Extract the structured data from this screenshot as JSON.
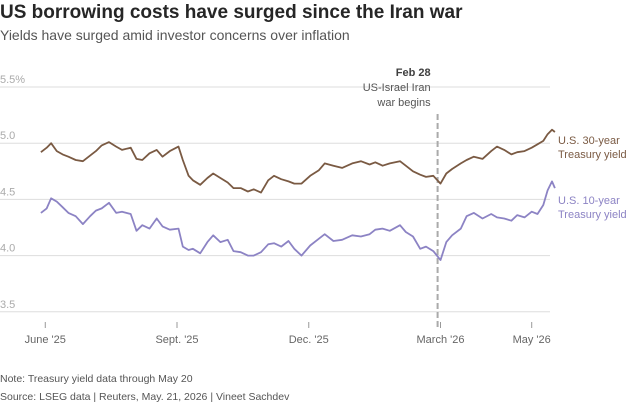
{
  "header": {
    "title": "US borrowing costs have surged since the Iran war",
    "subtitle": "Yields have surged amid investor concerns over inflation"
  },
  "footer": {
    "note": "Note: Treasury yield data through May 20",
    "source": "Source: LSEG data | Reuters, May. 21, 2026 | Vineet Sachdev"
  },
  "colors": {
    "thirty_year": "#7a5a43",
    "ten_year": "#8c83c4",
    "grid": "#dddddd",
    "event_line": "#aaaaaa"
  },
  "chart_data": {
    "type": "line",
    "title": "",
    "xlabel": "",
    "ylabel": "",
    "ylim": [
      3.4,
      5.5
    ],
    "yticks": [
      {
        "value": 5.5,
        "label": "5.5%"
      },
      {
        "value": 5.0,
        "label": "5.0"
      },
      {
        "value": 4.5,
        "label": "4.5"
      },
      {
        "value": 4.0,
        "label": "4.0"
      },
      {
        "value": 3.5,
        "label": "3.5"
      }
    ],
    "xlim": [
      "2025-05-19",
      "2026-05-27"
    ],
    "xticks": [
      {
        "date": "2025-06-02",
        "label": "June '25"
      },
      {
        "date": "2025-09-01",
        "label": "Sept. '25"
      },
      {
        "date": "2025-12-01",
        "label": "Dec. '25"
      },
      {
        "date": "2026-03-02",
        "label": "March '26"
      },
      {
        "date": "2026-05-04",
        "label": "May '26"
      }
    ],
    "grid": true,
    "annotation": {
      "date": "2026-02-28",
      "date_label": "Feb 28",
      "line1": "US-Israel Iran",
      "line2": "war begins"
    },
    "series": [
      {
        "name": "U.S. 30-year Treasury yield",
        "label_line1": "U.S. 30-year",
        "label_line2": "Treasury yield",
        "points": [
          [
            "2025-05-30",
            4.92
          ],
          [
            "2025-06-03",
            4.96
          ],
          [
            "2025-06-06",
            5.0
          ],
          [
            "2025-06-10",
            4.93
          ],
          [
            "2025-06-14",
            4.9
          ],
          [
            "2025-06-18",
            4.88
          ],
          [
            "2025-06-23",
            4.85
          ],
          [
            "2025-06-28",
            4.84
          ],
          [
            "2025-07-03",
            4.89
          ],
          [
            "2025-07-07",
            4.93
          ],
          [
            "2025-07-11",
            4.98
          ],
          [
            "2025-07-16",
            5.01
          ],
          [
            "2025-07-21",
            4.97
          ],
          [
            "2025-07-25",
            4.94
          ],
          [
            "2025-07-31",
            4.96
          ],
          [
            "2025-08-04",
            4.86
          ],
          [
            "2025-08-08",
            4.85
          ],
          [
            "2025-08-13",
            4.91
          ],
          [
            "2025-08-18",
            4.94
          ],
          [
            "2025-08-22",
            4.88
          ],
          [
            "2025-08-27",
            4.93
          ],
          [
            "2025-09-02",
            4.97
          ],
          [
            "2025-09-05",
            4.85
          ],
          [
            "2025-09-09",
            4.71
          ],
          [
            "2025-09-12",
            4.67
          ],
          [
            "2025-09-17",
            4.63
          ],
          [
            "2025-09-22",
            4.69
          ],
          [
            "2025-09-26",
            4.73
          ],
          [
            "2025-10-01",
            4.69
          ],
          [
            "2025-10-06",
            4.65
          ],
          [
            "2025-10-10",
            4.6
          ],
          [
            "2025-10-15",
            4.6
          ],
          [
            "2025-10-20",
            4.57
          ],
          [
            "2025-10-24",
            4.59
          ],
          [
            "2025-10-29",
            4.56
          ],
          [
            "2025-11-03",
            4.67
          ],
          [
            "2025-11-07",
            4.71
          ],
          [
            "2025-11-12",
            4.68
          ],
          [
            "2025-11-17",
            4.66
          ],
          [
            "2025-11-21",
            4.64
          ],
          [
            "2025-11-26",
            4.64
          ],
          [
            "2025-12-02",
            4.71
          ],
          [
            "2025-12-08",
            4.76
          ],
          [
            "2025-12-12",
            4.82
          ],
          [
            "2025-12-18",
            4.8
          ],
          [
            "2025-12-24",
            4.78
          ],
          [
            "2025-12-31",
            4.82
          ],
          [
            "2026-01-06",
            4.84
          ],
          [
            "2026-01-12",
            4.81
          ],
          [
            "2026-01-16",
            4.83
          ],
          [
            "2026-01-21",
            4.8
          ],
          [
            "2026-01-26",
            4.82
          ],
          [
            "2026-02-02",
            4.84
          ],
          [
            "2026-02-06",
            4.8
          ],
          [
            "2026-02-11",
            4.75
          ],
          [
            "2026-02-16",
            4.72
          ],
          [
            "2026-02-20",
            4.7
          ],
          [
            "2026-02-25",
            4.71
          ],
          [
            "2026-03-02",
            4.64
          ],
          [
            "2026-03-06",
            4.73
          ],
          [
            "2026-03-10",
            4.77
          ],
          [
            "2026-03-16",
            4.82
          ],
          [
            "2026-03-20",
            4.85
          ],
          [
            "2026-03-25",
            4.88
          ],
          [
            "2026-03-31",
            4.86
          ],
          [
            "2026-04-06",
            4.93
          ],
          [
            "2026-04-10",
            4.97
          ],
          [
            "2026-04-15",
            4.94
          ],
          [
            "2026-04-20",
            4.9
          ],
          [
            "2026-04-24",
            4.92
          ],
          [
            "2026-04-29",
            4.93
          ],
          [
            "2026-05-04",
            4.96
          ],
          [
            "2026-05-08",
            4.99
          ],
          [
            "2026-05-12",
            5.02
          ],
          [
            "2026-05-15",
            5.08
          ],
          [
            "2026-05-18",
            5.12
          ],
          [
            "2026-05-20",
            5.1
          ]
        ]
      },
      {
        "name": "U.S. 10-year Treasury yield",
        "label_line1": "U.S. 10-year",
        "label_line2": "Treasury yield",
        "points": [
          [
            "2025-05-30",
            4.38
          ],
          [
            "2025-06-03",
            4.42
          ],
          [
            "2025-06-06",
            4.51
          ],
          [
            "2025-06-10",
            4.48
          ],
          [
            "2025-06-14",
            4.43
          ],
          [
            "2025-06-18",
            4.38
          ],
          [
            "2025-06-23",
            4.35
          ],
          [
            "2025-06-28",
            4.28
          ],
          [
            "2025-07-03",
            4.35
          ],
          [
            "2025-07-07",
            4.4
          ],
          [
            "2025-07-11",
            4.42
          ],
          [
            "2025-07-16",
            4.47
          ],
          [
            "2025-07-21",
            4.38
          ],
          [
            "2025-07-25",
            4.39
          ],
          [
            "2025-07-31",
            4.37
          ],
          [
            "2025-08-04",
            4.22
          ],
          [
            "2025-08-08",
            4.27
          ],
          [
            "2025-08-13",
            4.24
          ],
          [
            "2025-08-18",
            4.33
          ],
          [
            "2025-08-22",
            4.26
          ],
          [
            "2025-08-27",
            4.23
          ],
          [
            "2025-09-02",
            4.24
          ],
          [
            "2025-09-05",
            4.08
          ],
          [
            "2025-09-09",
            4.05
          ],
          [
            "2025-09-12",
            4.06
          ],
          [
            "2025-09-17",
            4.02
          ],
          [
            "2025-09-22",
            4.12
          ],
          [
            "2025-09-26",
            4.18
          ],
          [
            "2025-10-01",
            4.12
          ],
          [
            "2025-10-06",
            4.14
          ],
          [
            "2025-10-10",
            4.04
          ],
          [
            "2025-10-15",
            4.03
          ],
          [
            "2025-10-20",
            4.0
          ],
          [
            "2025-10-24",
            4.0
          ],
          [
            "2025-10-29",
            4.03
          ],
          [
            "2025-11-03",
            4.1
          ],
          [
            "2025-11-07",
            4.11
          ],
          [
            "2025-11-12",
            4.08
          ],
          [
            "2025-11-17",
            4.13
          ],
          [
            "2025-11-21",
            4.06
          ],
          [
            "2025-11-26",
            4.0
          ],
          [
            "2025-12-02",
            4.09
          ],
          [
            "2025-12-08",
            4.15
          ],
          [
            "2025-12-12",
            4.19
          ],
          [
            "2025-12-18",
            4.13
          ],
          [
            "2025-12-24",
            4.14
          ],
          [
            "2025-12-31",
            4.18
          ],
          [
            "2026-01-06",
            4.17
          ],
          [
            "2026-01-12",
            4.19
          ],
          [
            "2026-01-16",
            4.23
          ],
          [
            "2026-01-21",
            4.24
          ],
          [
            "2026-01-26",
            4.22
          ],
          [
            "2026-02-02",
            4.27
          ],
          [
            "2026-02-06",
            4.21
          ],
          [
            "2026-02-11",
            4.17
          ],
          [
            "2026-02-16",
            4.06
          ],
          [
            "2026-02-20",
            4.08
          ],
          [
            "2026-02-25",
            4.04
          ],
          [
            "2026-03-02",
            3.96
          ],
          [
            "2026-03-06",
            4.12
          ],
          [
            "2026-03-10",
            4.18
          ],
          [
            "2026-03-16",
            4.24
          ],
          [
            "2026-03-20",
            4.35
          ],
          [
            "2026-03-25",
            4.38
          ],
          [
            "2026-03-31",
            4.33
          ],
          [
            "2026-04-06",
            4.37
          ],
          [
            "2026-04-10",
            4.34
          ],
          [
            "2026-04-15",
            4.33
          ],
          [
            "2026-04-20",
            4.31
          ],
          [
            "2026-04-24",
            4.36
          ],
          [
            "2026-04-29",
            4.34
          ],
          [
            "2026-05-04",
            4.39
          ],
          [
            "2026-05-08",
            4.37
          ],
          [
            "2026-05-12",
            4.45
          ],
          [
            "2026-05-15",
            4.58
          ],
          [
            "2026-05-18",
            4.66
          ],
          [
            "2026-05-20",
            4.6
          ]
        ]
      }
    ]
  }
}
